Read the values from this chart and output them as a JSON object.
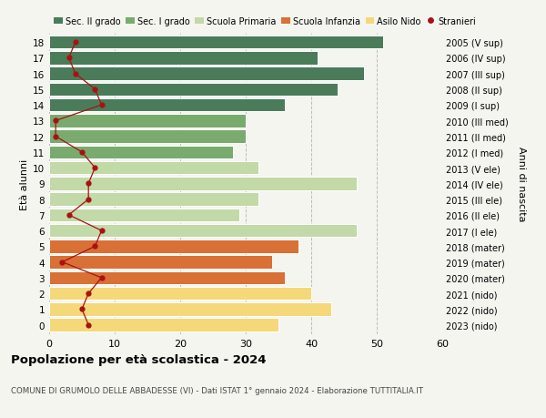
{
  "ages": [
    18,
    17,
    16,
    15,
    14,
    13,
    12,
    11,
    10,
    9,
    8,
    7,
    6,
    5,
    4,
    3,
    2,
    1,
    0
  ],
  "labels_right": [
    "2005 (V sup)",
    "2006 (IV sup)",
    "2007 (III sup)",
    "2008 (II sup)",
    "2009 (I sup)",
    "2010 (III med)",
    "2011 (II med)",
    "2012 (I med)",
    "2013 (V ele)",
    "2014 (IV ele)",
    "2015 (III ele)",
    "2016 (II ele)",
    "2017 (I ele)",
    "2018 (mater)",
    "2019 (mater)",
    "2020 (mater)",
    "2021 (nido)",
    "2022 (nido)",
    "2023 (nido)"
  ],
  "bar_values": [
    51,
    41,
    48,
    44,
    36,
    30,
    30,
    28,
    32,
    47,
    32,
    29,
    47,
    38,
    34,
    36,
    40,
    43,
    35
  ],
  "stranieri_values": [
    4,
    3,
    4,
    7,
    8,
    1,
    1,
    5,
    7,
    6,
    6,
    3,
    8,
    7,
    2,
    8,
    6,
    5,
    6
  ],
  "bar_colors": [
    "#4a7c59",
    "#4a7c59",
    "#4a7c59",
    "#4a7c59",
    "#4a7c59",
    "#7aab6e",
    "#7aab6e",
    "#7aab6e",
    "#c2d9a8",
    "#c2d9a8",
    "#c2d9a8",
    "#c2d9a8",
    "#c2d9a8",
    "#d97035",
    "#d97035",
    "#d97035",
    "#f5d87a",
    "#f5d87a",
    "#f5d87a"
  ],
  "legend_labels": [
    "Sec. II grado",
    "Sec. I grado",
    "Scuola Primaria",
    "Scuola Infanzia",
    "Asilo Nido",
    "Stranieri"
  ],
  "legend_colors": [
    "#4a7c59",
    "#7aab6e",
    "#c2d9a8",
    "#d97035",
    "#f5d87a",
    "#aa1111"
  ],
  "ylabel_left": "Età alunni",
  "ylabel_right": "Anni di nascita",
  "title": "Popolazione per età scolastica - 2024",
  "subtitle": "COMUNE DI GRUMOLO DELLE ABBADESSE (VI) - Dati ISTAT 1° gennaio 2024 - Elaborazione TUTTITALIA.IT",
  "xlim": [
    0,
    60
  ],
  "stranieri_color": "#aa1111",
  "background_color": "#f5f5f0",
  "grid_color": "#bbbbbb"
}
